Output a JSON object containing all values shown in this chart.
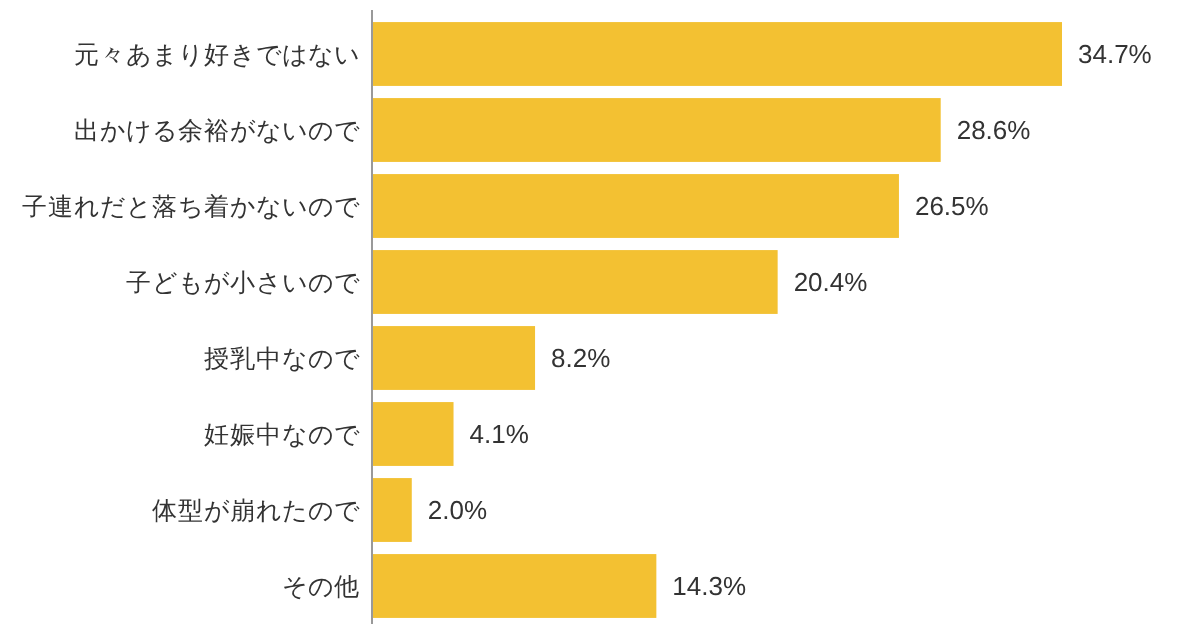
{
  "chart_data": {
    "type": "bar",
    "orientation": "horizontal",
    "categories": [
      "元々あまり好きではない",
      "出かける余裕がないので",
      "子連れだと落ち着かないので",
      "子どもが小さいので",
      "授乳中なので",
      "妊娠中なので",
      "体型が崩れたので",
      "その他"
    ],
    "values": [
      34.7,
      28.6,
      26.5,
      20.4,
      8.2,
      4.1,
      2.0,
      14.3
    ],
    "value_labels": [
      "34.7%",
      "28.6%",
      "26.5%",
      "20.4%",
      "8.2%",
      "4.1%",
      "2.0%",
      "14.3%"
    ],
    "color": "#f3c132"
  }
}
